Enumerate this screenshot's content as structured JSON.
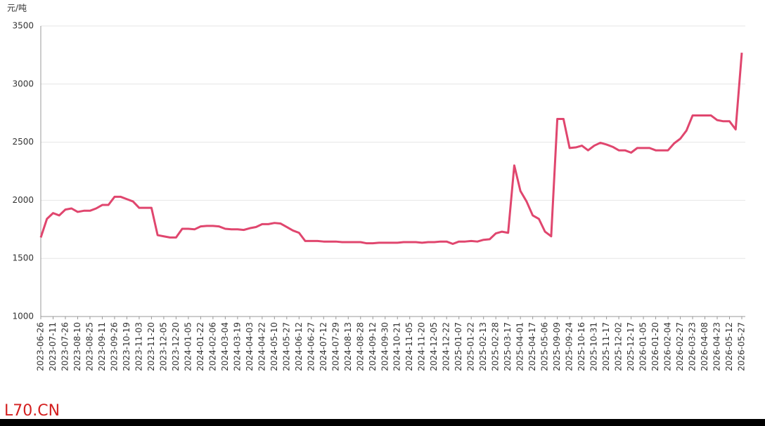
{
  "chart_data": {
    "type": "line",
    "y_label": "元/吨",
    "watermark": "L70.CN",
    "categories": [
      "2023-06-26",
      null,
      "2023-07-11",
      null,
      "2023-07-26",
      null,
      "2023-08-10",
      null,
      "2023-08-25",
      null,
      "2023-09-11",
      null,
      "2023-09-26",
      null,
      "2023-10-19",
      null,
      "2023-11-03",
      null,
      "2023-11-20",
      null,
      "2023-12-05",
      null,
      "2023-12-20",
      null,
      "2024-01-05",
      null,
      "2024-01-22",
      null,
      "2024-02-06",
      null,
      "2024-03-04",
      null,
      "2024-03-19",
      null,
      "2024-04-03",
      null,
      "2024-04-22",
      null,
      "2024-05-10",
      null,
      "2024-05-27",
      null,
      "2024-06-12",
      null,
      "2024-06-27",
      null,
      "2024-07-12",
      null,
      "2024-07-29",
      null,
      "2024-08-13",
      null,
      "2024-08-28",
      null,
      "2024-09-12",
      null,
      "2024-09-30",
      null,
      "2024-10-21",
      null,
      "2024-11-05",
      null,
      "2024-11-20",
      null,
      "2024-12-05",
      null,
      "2024-12-22",
      null,
      "2025-01-07",
      null,
      "2025-01-22",
      null,
      "2025-02-13",
      null,
      "2025-02-28",
      null,
      "2025-03-17",
      null,
      "2025-04-01",
      null,
      "2025-04-17",
      null,
      "2025-05-06",
      null,
      "2025-09-09",
      null,
      "2025-09-24",
      null,
      "2025-10-16",
      null,
      "2025-10-31",
      null,
      "2025-11-17",
      null,
      "2025-12-02",
      null,
      "2025-12-17",
      null,
      "2026-01-05",
      null,
      "2026-01-20",
      null,
      "2026-02-04",
      null,
      "2026-02-27",
      null,
      "2026-03-23",
      null,
      "2026-04-08",
      null,
      "2026-04-23",
      null,
      "2026-05-12",
      null,
      "2026-05-27"
    ],
    "series": [
      {
        "color": "#e0466e",
        "values": [
          1680,
          1840,
          1890,
          1870,
          1920,
          1930,
          1900,
          1910,
          1910,
          1930,
          1960,
          1960,
          2030,
          2030,
          2010,
          1990,
          1935,
          1935,
          1935,
          1700,
          1690,
          1680,
          1680,
          1755,
          1755,
          1750,
          1775,
          1780,
          1780,
          1775,
          1755,
          1750,
          1750,
          1745,
          1760,
          1770,
          1795,
          1795,
          1805,
          1800,
          1770,
          1740,
          1720,
          1650,
          1650,
          1650,
          1645,
          1645,
          1645,
          1640,
          1640,
          1640,
          1640,
          1630,
          1630,
          1635,
          1635,
          1635,
          1635,
          1640,
          1640,
          1640,
          1635,
          1640,
          1640,
          1645,
          1645,
          1625,
          1645,
          1645,
          1650,
          1645,
          1660,
          1665,
          1715,
          1730,
          1720,
          2300,
          2080,
          1990,
          1870,
          1840,
          1730,
          1690,
          2700,
          2700,
          2450,
          2455,
          2470,
          2430,
          2470,
          2495,
          2480,
          2460,
          2430,
          2430,
          2410,
          2450,
          2450,
          2450,
          2430,
          2430,
          2430,
          2490,
          2530,
          2600,
          2730,
          2730,
          2730,
          2730,
          2690,
          2680,
          2680,
          2610,
          3270
        ]
      }
    ],
    "ylim": [
      1000,
      3500
    ],
    "yticks": [
      1000,
      1500,
      2000,
      2500,
      3000,
      3500
    ],
    "grid": true
  }
}
